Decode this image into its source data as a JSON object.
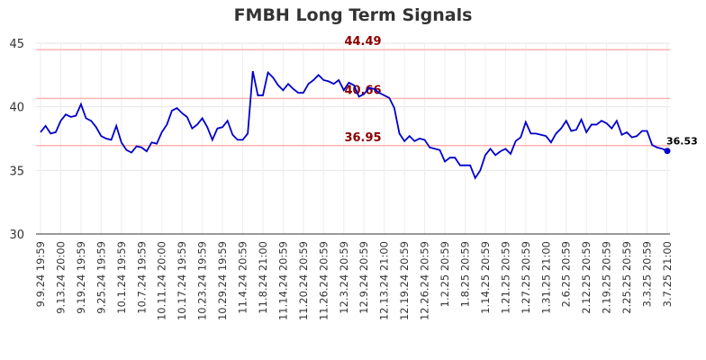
{
  "chart_data": {
    "type": "line",
    "title": "FMBH Long Term Signals",
    "xlabel": "",
    "ylabel": "",
    "ylim": [
      30,
      45
    ],
    "y_ticks": [
      "30",
      "35",
      "40",
      "45"
    ],
    "x_tick_labels": [
      "9.9.24 19:59",
      "9.13.24 20:00",
      "9.19.24 19:59",
      "9.25.24 19:59",
      "10.1.24 19:59",
      "10.7.24 19:59",
      "10.11.24 20:00",
      "10.17.24 19:59",
      "10.23.24 19:59",
      "10.29.24 19:59",
      "11.4.24 20:59",
      "11.8.24 21:00",
      "11.14.24 20:59",
      "11.20.24 20:59",
      "11.26.24 20:59",
      "12.3.24 20:59",
      "12.9.24 20:59",
      "12.13.24 21:00",
      "12.19.24 20:59",
      "12.26.24 20:59",
      "1.2.25 20:59",
      "1.8.25 20:59",
      "1.14.25 20:59",
      "1.21.25 20:59",
      "1.27.25 20:59",
      "1.31.25 21:00",
      "2.6.25 20:59",
      "2.12.25 20:59",
      "2.19.25 20:59",
      "2.25.25 20:59",
      "3.3.25 20:59",
      "3.7.25 21:00"
    ],
    "grid": true,
    "series": [
      {
        "color": "#0000cc",
        "values": [
          38.0,
          38.5,
          37.9,
          38.0,
          38.9,
          39.4,
          39.2,
          39.3,
          40.2,
          39.1,
          38.9,
          38.4,
          37.7,
          37.5,
          37.4,
          38.5,
          37.2,
          36.6,
          36.4,
          36.9,
          36.8,
          36.5,
          37.2,
          37.1,
          38.0,
          38.6,
          39.7,
          39.9,
          39.5,
          39.2,
          38.3,
          38.6,
          39.1,
          38.4,
          37.4,
          38.3,
          38.4,
          38.9,
          37.8,
          37.4,
          37.4,
          37.9,
          42.8,
          40.9,
          40.9,
          42.7,
          42.3,
          41.7,
          41.3,
          41.8,
          41.4,
          41.1,
          41.1,
          41.8,
          42.1,
          42.5,
          42.1,
          42.0,
          41.8,
          42.1,
          41.3,
          41.9,
          41.7,
          40.8,
          41.0,
          41.5,
          41.4,
          41.1,
          40.9,
          40.7,
          39.9,
          37.9,
          37.3,
          37.7,
          37.3,
          37.5,
          37.4,
          36.8,
          36.7,
          36.6,
          35.7,
          36.0,
          36.0,
          35.4,
          35.4,
          35.4,
          34.4,
          35.0,
          36.2,
          36.7,
          36.2,
          36.5,
          36.7,
          36.3,
          37.3,
          37.6,
          38.8,
          37.9,
          37.9,
          37.8,
          37.7,
          37.2,
          37.9,
          38.3,
          38.9,
          38.1,
          38.2,
          39.0,
          38.0,
          38.6,
          38.6,
          38.9,
          38.7,
          38.3,
          38.9,
          37.8,
          38.0,
          37.6,
          37.7,
          38.1,
          38.1,
          37.0,
          36.8,
          36.7,
          36.53
        ]
      }
    ],
    "horizontal_lines": [
      {
        "value": 44.49,
        "label": "44.49",
        "color": "#ffb3b3"
      },
      {
        "value": 40.66,
        "label": "40.66",
        "color": "#ffb3b3"
      },
      {
        "value": 36.95,
        "label": "36.95",
        "color": "#ffb3b3"
      }
    ],
    "signal_label_color": "#8b0000",
    "last_point": {
      "value": 36.53,
      "label": "36.53"
    }
  }
}
